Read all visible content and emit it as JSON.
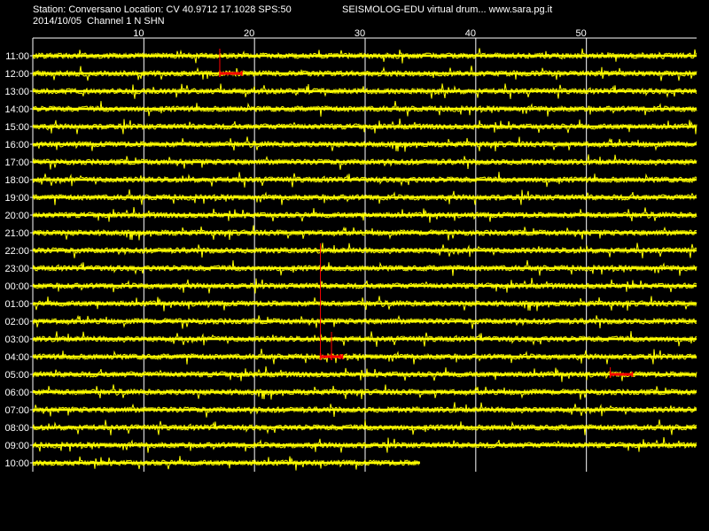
{
  "header": {
    "station_line": "Station: Conversano Location: CV 40.9712 17.1028 SPS:50",
    "date_line": "2014/10/05  Channel 1 N SHN",
    "title_right": "SEISMOLOG-EDU virtual drum... www.sara.pg.it"
  },
  "colors": {
    "background": "#000000",
    "trace": "#ffff00",
    "event_marker": "#ff0000",
    "grid": "#ffffff",
    "text": "#ffffff"
  },
  "chart_data": {
    "type": "line",
    "title": "",
    "xlabel": "",
    "ylabel": "",
    "x_unit_implied": "minutes",
    "xlim": [
      0,
      60
    ],
    "x_ticks": [
      10,
      20,
      30,
      40,
      50
    ],
    "grid": "vertical lines every 10 minutes",
    "rows": [
      {
        "label": "11:00",
        "end_minute": 60
      },
      {
        "label": "12:00",
        "end_minute": 60
      },
      {
        "label": "13:00",
        "end_minute": 60
      },
      {
        "label": "14:00",
        "end_minute": 60
      },
      {
        "label": "15:00",
        "end_minute": 60
      },
      {
        "label": "16:00",
        "end_minute": 60
      },
      {
        "label": "17:00",
        "end_minute": 60
      },
      {
        "label": "18:00",
        "end_minute": 60
      },
      {
        "label": "19:00",
        "end_minute": 60
      },
      {
        "label": "20:00",
        "end_minute": 60
      },
      {
        "label": "21:00",
        "end_minute": 60
      },
      {
        "label": "22:00",
        "end_minute": 60
      },
      {
        "label": "23:00",
        "end_minute": 60
      },
      {
        "label": "00:00",
        "end_minute": 60
      },
      {
        "label": "01:00",
        "end_minute": 60
      },
      {
        "label": "02:00",
        "end_minute": 60
      },
      {
        "label": "03:00",
        "end_minute": 60
      },
      {
        "label": "04:00",
        "end_minute": 60
      },
      {
        "label": "05:00",
        "end_minute": 60
      },
      {
        "label": "06:00",
        "end_minute": 60
      },
      {
        "label": "07:00",
        "end_minute": 60
      },
      {
        "label": "08:00",
        "end_minute": 60
      },
      {
        "label": "09:00",
        "end_minute": 60
      },
      {
        "label": "10:00",
        "end_minute": 35
      }
    ],
    "events": [
      {
        "row": "12:00",
        "start_minute": 16.9,
        "end_minute": 18.9,
        "marker_top_row": "11:00"
      },
      {
        "row": "04:00",
        "start_minute": 26.0,
        "end_minute": 28.0,
        "marker_top_row": "22:00"
      },
      {
        "row": "04:00",
        "start_minute": 27.0,
        "end_minute": 27.8,
        "marker_top_row": "03:00"
      },
      {
        "row": "05:00",
        "start_minute": 52.2,
        "end_minute": 54.2,
        "marker_top_row": "05:00"
      }
    ]
  }
}
